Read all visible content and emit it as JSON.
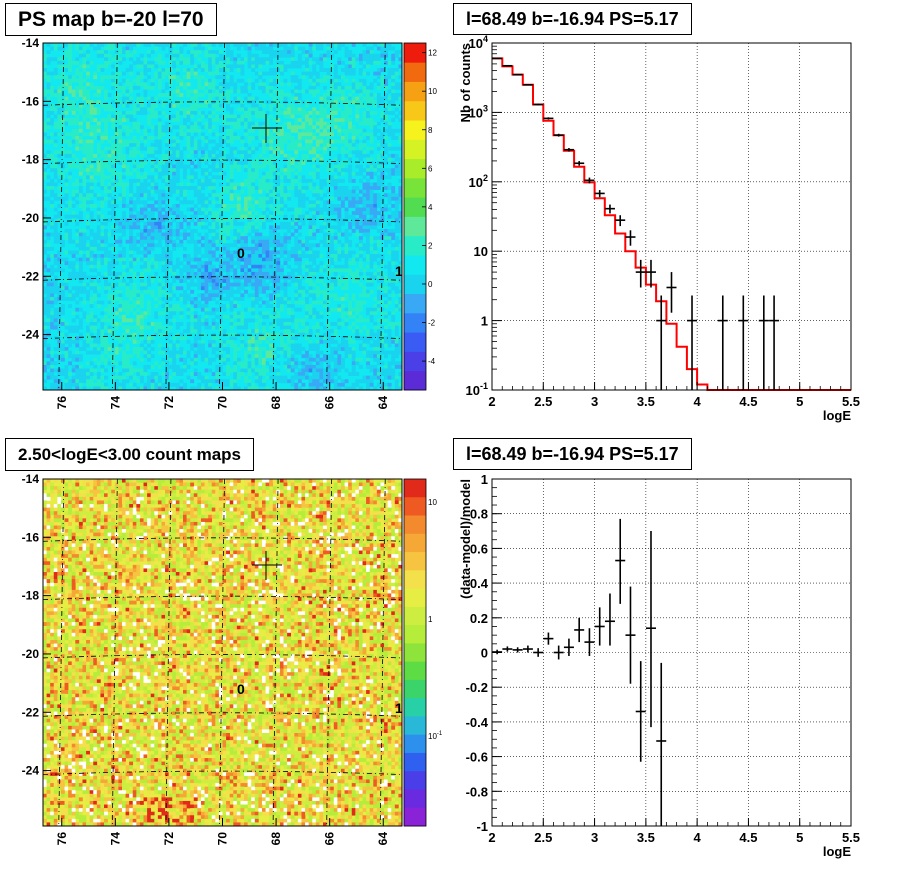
{
  "panels": {
    "ps_map": {
      "title": "PS map b=-20 l=70",
      "colorbar_ticks": [
        "12",
        "10",
        "8",
        "6",
        "4",
        "2",
        "0",
        "-2",
        "-4"
      ],
      "x_ticks": [
        "76",
        "74",
        "72",
        "70",
        "68",
        "66",
        "64"
      ],
      "y_ticks": [
        "-14",
        "-16",
        "-18",
        "-20",
        "-22",
        "-24"
      ],
      "marker_0": "0",
      "marker_1": "1"
    },
    "count_map": {
      "title": "2.50<logE<3.00 count maps",
      "colorbar_ticks": [
        "10",
        "1",
        "10"
      ],
      "colorbar_tick_exp": "-1",
      "x_ticks": [
        "76",
        "74",
        "72",
        "70",
        "68",
        "66",
        "64"
      ],
      "y_ticks": [
        "-14",
        "-16",
        "-18",
        "-20",
        "-22",
        "-24"
      ],
      "marker_0": "0",
      "marker_1": "1"
    },
    "spectrum": {
      "title": "l=68.49 b=-16.94 PS=5.17"
    },
    "residual": {
      "title": "l=68.49 b=-16.94 PS=5.17"
    }
  },
  "chart_data": [
    {
      "type": "heatmap",
      "title": "PS map b=-20 l=70",
      "xlabel": "",
      "ylabel": "",
      "xlim": [
        76.7,
        63.3
      ],
      "ylim": [
        -25.9,
        -14
      ],
      "zlim": [
        -5,
        12
      ],
      "x_ticks": [
        76,
        74,
        72,
        70,
        68,
        66,
        64
      ],
      "y_ticks": [
        -14,
        -16,
        -18,
        -20,
        -22,
        -24
      ],
      "colorbar_ticks": [
        12,
        10,
        8,
        6,
        4,
        2,
        0,
        -2,
        -4
      ],
      "source_marker": {
        "l": 68.49,
        "b": -16.94
      },
      "labels": [
        "0",
        "1"
      ],
      "colors": {
        "low": "#5b2bd8",
        "mid": "#14e8f0",
        "high": "#ee1c0c"
      }
    },
    {
      "type": "heatmap",
      "title": "2.50<logE<3.00 count maps",
      "xlabel": "",
      "ylabel": "",
      "xlim": [
        76.7,
        63.3
      ],
      "ylim": [
        -25.9,
        -14
      ],
      "zscale": "log",
      "colorbar_ticks": [
        "10",
        "1",
        "10^-1"
      ],
      "source_marker": {
        "l": 68.49,
        "b": -16.94
      },
      "labels": [
        "0",
        "1"
      ]
    },
    {
      "type": "line",
      "title": "l=68.49 b=-16.94 PS=5.17",
      "xlabel": "logE",
      "ylabel": "Nb of counts",
      "xlim": [
        2,
        5.5
      ],
      "ylim": [
        0.1,
        10000
      ],
      "yscale": "log",
      "grid": true,
      "x_ticks": [
        "2",
        "2.5",
        "3",
        "3.5",
        "4",
        "4.5",
        "5",
        "5.5"
      ],
      "y_ticks": [
        {
          "value": 0.1,
          "base": "10",
          "exp": "-1"
        },
        {
          "value": 1,
          "base": "1",
          "exp": ""
        },
        {
          "value": 10,
          "base": "10",
          "exp": ""
        },
        {
          "value": 100,
          "base": "10",
          "exp": "2"
        },
        {
          "value": 1000,
          "base": "10",
          "exp": "3"
        },
        {
          "value": 10000,
          "base": "10",
          "exp": "4"
        }
      ],
      "series": [
        {
          "color": "#ff0000",
          "style": "step",
          "edges": [
            2,
            2.1,
            2.2,
            2.3,
            2.4,
            2.5,
            2.6,
            2.7,
            2.8,
            2.9,
            3.0,
            3.1,
            3.2,
            3.3,
            3.4,
            3.5,
            3.6,
            3.7,
            3.8,
            3.9,
            4.0,
            4.1,
            4.2,
            4.3,
            4.4,
            4.5,
            4.6,
            4.7,
            4.8,
            4.9,
            5.0,
            5.1,
            5.2,
            5.3,
            5.4,
            5.5
          ],
          "values": [
            6000,
            4600,
            3500,
            2500,
            1300,
            760,
            470,
            280,
            165,
            98,
            58,
            33,
            18,
            10,
            5.8,
            3.3,
            1.9,
            0.9,
            0.42,
            0.2,
            0.12,
            0.1,
            0.1,
            0.1,
            0.1,
            0.1,
            0.1,
            0.1,
            0.1,
            0.1,
            0.1,
            0.1,
            0.1,
            0.1,
            0.1
          ]
        },
        {
          "color": "#000000",
          "style": "points",
          "points": [
            {
              "x": 2.05,
              "y": 6000,
              "lo": 5920,
              "hi": 6080
            },
            {
              "x": 2.15,
              "y": 4700,
              "lo": 4630,
              "hi": 4770
            },
            {
              "x": 2.25,
              "y": 3500,
              "lo": 3440,
              "hi": 3560
            },
            {
              "x": 2.35,
              "y": 2500,
              "lo": 2450,
              "hi": 2550
            },
            {
              "x": 2.45,
              "y": 1300,
              "lo": 1265,
              "hi": 1335
            },
            {
              "x": 2.55,
              "y": 820,
              "lo": 790,
              "hi": 850
            },
            {
              "x": 2.65,
              "y": 470,
              "lo": 448,
              "hi": 492
            },
            {
              "x": 2.75,
              "y": 290,
              "lo": 273,
              "hi": 307
            },
            {
              "x": 2.85,
              "y": 185,
              "lo": 171,
              "hi": 199
            },
            {
              "x": 2.95,
              "y": 105,
              "lo": 95,
              "hi": 115
            },
            {
              "x": 3.05,
              "y": 68,
              "lo": 60,
              "hi": 76
            },
            {
              "x": 3.15,
              "y": 41,
              "lo": 35,
              "hi": 47
            },
            {
              "x": 3.25,
              "y": 28,
              "lo": 23,
              "hi": 33
            },
            {
              "x": 3.35,
              "y": 16,
              "lo": 12,
              "hi": 20
            },
            {
              "x": 3.45,
              "y": 5,
              "lo": 3,
              "hi": 7.5
            },
            {
              "x": 3.55,
              "y": 5,
              "lo": 3,
              "hi": 7.5
            },
            {
              "x": 3.65,
              "y": 1,
              "lo": 0.1,
              "hi": 2.3
            },
            {
              "x": 3.75,
              "y": 3,
              "lo": 1.3,
              "hi": 5
            },
            {
              "x": 3.95,
              "y": 1,
              "lo": 0.1,
              "hi": 2.3
            },
            {
              "x": 4.25,
              "y": 1,
              "lo": 0.1,
              "hi": 2.3
            },
            {
              "x": 4.45,
              "y": 1,
              "lo": 0.1,
              "hi": 2.3
            },
            {
              "x": 4.65,
              "y": 1,
              "lo": 0.1,
              "hi": 2.3
            },
            {
              "x": 4.75,
              "y": 1,
              "lo": 0.1,
              "hi": 2.3
            }
          ]
        }
      ]
    },
    {
      "type": "scatter",
      "title": "l=68.49 b=-16.94 PS=5.17",
      "xlabel": "logE",
      "ylabel": "(data-model)/model",
      "xlim": [
        2,
        5.5
      ],
      "ylim": [
        -1,
        1
      ],
      "grid": true,
      "x_ticks": [
        "2",
        "2.5",
        "3",
        "3.5",
        "4",
        "4.5",
        "5",
        "5.5"
      ],
      "y_ticks": [
        "1",
        "0.8",
        "0.6",
        "0.4",
        "0.2",
        "0",
        "-0.2",
        "-0.4",
        "-0.6",
        "-0.8",
        "-1"
      ],
      "series": [
        {
          "color": "#000000",
          "points": [
            {
              "x": 2.05,
              "y": 0.003,
              "lo": -0.01,
              "hi": 0.016
            },
            {
              "x": 2.15,
              "y": 0.02,
              "lo": 0.005,
              "hi": 0.035
            },
            {
              "x": 2.25,
              "y": 0.015,
              "lo": 0.0,
              "hi": 0.03
            },
            {
              "x": 2.35,
              "y": 0.02,
              "lo": 0.0,
              "hi": 0.04
            },
            {
              "x": 2.45,
              "y": 0.0,
              "lo": -0.025,
              "hi": 0.025
            },
            {
              "x": 2.55,
              "y": 0.08,
              "lo": 0.045,
              "hi": 0.115
            },
            {
              "x": 2.65,
              "y": 0.0,
              "lo": -0.04,
              "hi": 0.04
            },
            {
              "x": 2.75,
              "y": 0.03,
              "lo": -0.02,
              "hi": 0.08
            },
            {
              "x": 2.85,
              "y": 0.13,
              "lo": 0.06,
              "hi": 0.2
            },
            {
              "x": 2.95,
              "y": 0.06,
              "lo": -0.02,
              "hi": 0.14
            },
            {
              "x": 3.05,
              "y": 0.15,
              "lo": 0.04,
              "hi": 0.26
            },
            {
              "x": 3.15,
              "y": 0.18,
              "lo": 0.04,
              "hi": 0.34
            },
            {
              "x": 3.25,
              "y": 0.53,
              "lo": 0.28,
              "hi": 0.77
            },
            {
              "x": 3.35,
              "y": 0.1,
              "lo": -0.18,
              "hi": 0.38
            },
            {
              "x": 3.45,
              "y": -0.34,
              "lo": -0.63,
              "hi": -0.05
            },
            {
              "x": 3.55,
              "y": 0.14,
              "lo": -0.43,
              "hi": 0.7
            },
            {
              "x": 3.65,
              "y": -0.51,
              "lo": -1.0,
              "hi": -0.06
            }
          ]
        }
      ]
    }
  ]
}
